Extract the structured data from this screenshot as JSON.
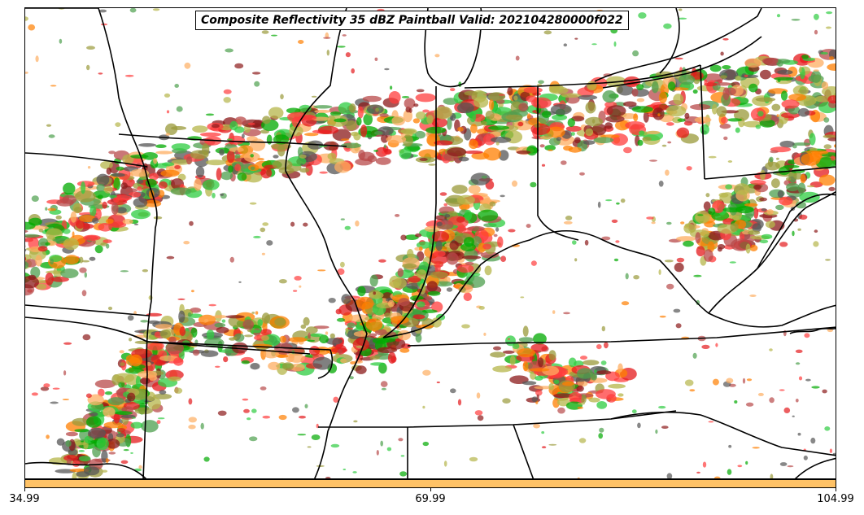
{
  "title": "Composite Reflectivity 35 dBZ Paintball Valid: 202104280000f022",
  "colorbar": {
    "color": "#ffc266",
    "tick_labels": [
      "34.99",
      "69.99",
      "104.99"
    ]
  },
  "palette": [
    "#ff3c3c",
    "#e41a1c",
    "#ff7f00",
    "#fdae61",
    "#8b1a1a",
    "#b84a4a",
    "#4d9f4d",
    "#2ecc40",
    "#9a9a3a",
    "#b5b54a",
    "#555555",
    "#00aa00"
  ],
  "map": {
    "features": [
      "state-borders",
      "county-lines",
      "great-lakes",
      "coastline"
    ]
  }
}
